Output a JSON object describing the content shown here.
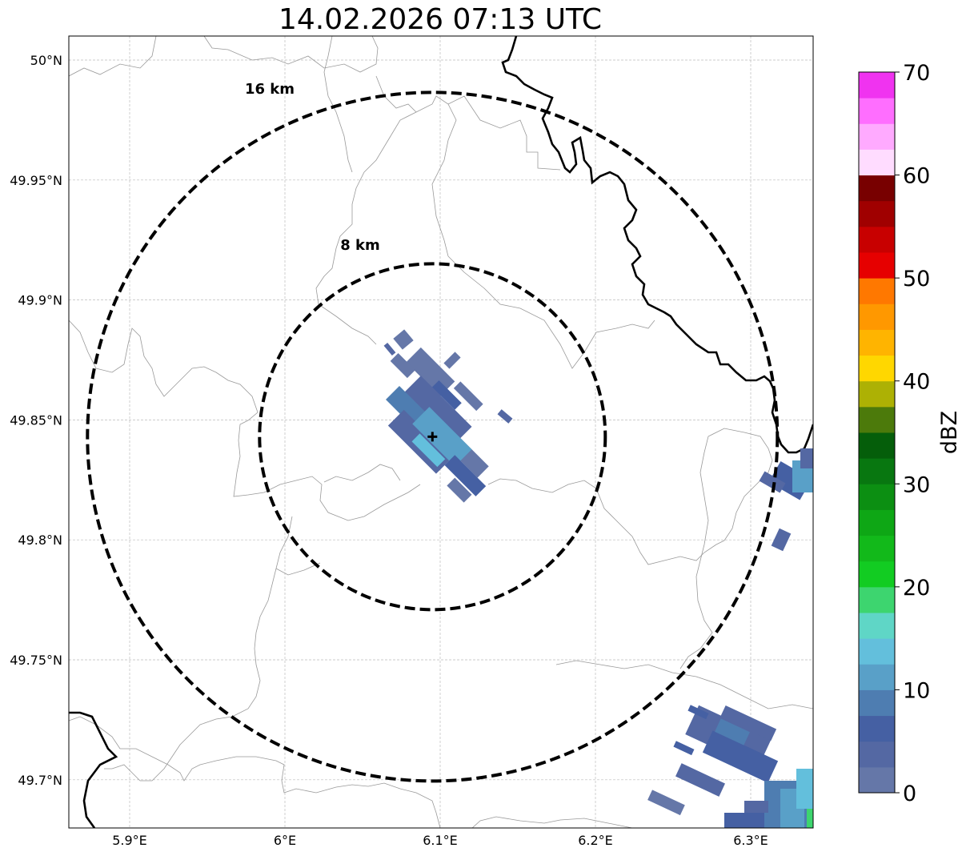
{
  "title": "14.02.2026 07:13 UTC",
  "map": {
    "lon_range": [
      5.86,
      6.34
    ],
    "lat_range": [
      49.68,
      50.01
    ],
    "x_ticks": [
      {
        "value": 5.9,
        "label": "5.9°E"
      },
      {
        "value": 6.0,
        "label": "6°E"
      },
      {
        "value": 6.1,
        "label": "6.1°E"
      },
      {
        "value": 6.2,
        "label": "6.2°E"
      },
      {
        "value": 6.3,
        "label": "6.3°E"
      }
    ],
    "y_ticks": [
      {
        "value": 50.0,
        "label": "50°N"
      },
      {
        "value": 49.95,
        "label": "49.95°N"
      },
      {
        "value": 49.9,
        "label": "49.9°N"
      },
      {
        "value": 49.85,
        "label": "49.85°N"
      },
      {
        "value": 49.8,
        "label": "49.8°N"
      },
      {
        "value": 49.75,
        "label": "49.75°N"
      },
      {
        "value": 49.7,
        "label": "49.7°N"
      }
    ],
    "grid": true,
    "radar_site": {
      "lon": 6.095,
      "lat": 49.843
    },
    "rings": [
      {
        "label": "8 km",
        "radius_km": 8
      },
      {
        "label": "16 km",
        "radius_km": 16
      }
    ],
    "echo_clusters": [
      {
        "name": "central",
        "lon": 6.095,
        "lat": 49.845,
        "max_dbz": 15
      },
      {
        "name": "east",
        "lon": 6.33,
        "lat": 49.83,
        "max_dbz": 12
      },
      {
        "name": "southeast",
        "lon": 6.3,
        "lat": 49.7,
        "max_dbz": 22
      }
    ]
  },
  "colorbar": {
    "label": "dBZ",
    "min": 0,
    "max": 70,
    "tick_labels": [
      "0",
      "10",
      "20",
      "30",
      "40",
      "50",
      "60",
      "70"
    ],
    "colors": [
      "#6577a8",
      "#5468a3",
      "#4560a3",
      "#4e7db1",
      "#59a0c8",
      "#63bfdc",
      "#5fd6c6",
      "#3dd56f",
      "#12cc22",
      "#12b91a",
      "#0ea715",
      "#0c8f12",
      "#087710",
      "#055e0a",
      "#4c7a0b",
      "#adb104",
      "#ffd700",
      "#ffb400",
      "#ff9800",
      "#ff7800",
      "#e60000",
      "#c80000",
      "#a00000",
      "#780000",
      "#ffdcff",
      "#ffaaff",
      "#ff6eff",
      "#f033f0"
    ]
  }
}
